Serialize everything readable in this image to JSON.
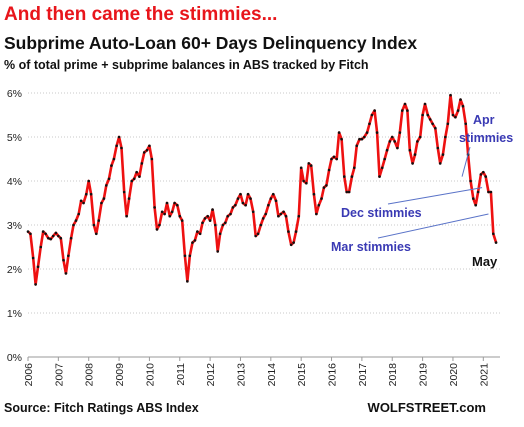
{
  "headline": "And then came the stimmies...",
  "source": "Source: Fitch Ratings ABS Index",
  "brand": "WOLFSTREET.com",
  "chart_data": {
    "type": "line",
    "title": "Subprime Auto-Loan 60+ Days Delinquency Index",
    "subtitle": "% of total prime + subprime balances in ABS tracked by Fitch",
    "xlabel": "",
    "ylabel": "",
    "ylim": [
      0,
      6
    ],
    "xlim": [
      2006.0,
      2021.55
    ],
    "y_ticks": [
      "0%",
      "1%",
      "2%",
      "3%",
      "4%",
      "5%",
      "6%"
    ],
    "x_ticks": [
      "2006",
      "2007",
      "2008",
      "2009",
      "2010",
      "2011",
      "2012",
      "2013",
      "2014",
      "2015",
      "2016",
      "2017",
      "2018",
      "2019",
      "2020",
      "2021"
    ],
    "grid": "horizontal dotted",
    "colors": {
      "line": "#ee1111",
      "markers": "#111111",
      "annotation": "#3a3ab4"
    },
    "annotations": [
      {
        "label": "Apr",
        "label2": "stimmies",
        "target": [
          2020.3,
          4.1
        ]
      },
      {
        "label": "Dec stimmies",
        "target": [
          2020.96,
          3.85
        ]
      },
      {
        "label": "Mar stimmies",
        "target": [
          2021.17,
          3.25
        ]
      },
      {
        "label": "May"
      }
    ],
    "series": [
      {
        "values": [
          [
            2006.0,
            2.85
          ],
          [
            2006.08,
            2.8
          ],
          [
            2006.17,
            2.25
          ],
          [
            2006.25,
            1.65
          ],
          [
            2006.33,
            2.05
          ],
          [
            2006.42,
            2.5
          ],
          [
            2006.5,
            2.85
          ],
          [
            2006.58,
            2.8
          ],
          [
            2006.67,
            2.7
          ],
          [
            2006.75,
            2.68
          ],
          [
            2006.83,
            2.75
          ],
          [
            2006.92,
            2.82
          ],
          [
            2007.0,
            2.75
          ],
          [
            2007.08,
            2.7
          ],
          [
            2007.17,
            2.2
          ],
          [
            2007.25,
            1.9
          ],
          [
            2007.33,
            2.3
          ],
          [
            2007.42,
            2.7
          ],
          [
            2007.5,
            3.0
          ],
          [
            2007.58,
            3.1
          ],
          [
            2007.67,
            3.25
          ],
          [
            2007.75,
            3.55
          ],
          [
            2007.83,
            3.5
          ],
          [
            2007.92,
            3.7
          ],
          [
            2008.0,
            4.0
          ],
          [
            2008.08,
            3.7
          ],
          [
            2008.17,
            3.0
          ],
          [
            2008.25,
            2.8
          ],
          [
            2008.33,
            3.1
          ],
          [
            2008.42,
            3.5
          ],
          [
            2008.5,
            3.6
          ],
          [
            2008.58,
            3.9
          ],
          [
            2008.67,
            4.05
          ],
          [
            2008.75,
            4.35
          ],
          [
            2008.83,
            4.5
          ],
          [
            2008.92,
            4.8
          ],
          [
            2009.0,
            5.0
          ],
          [
            2009.08,
            4.75
          ],
          [
            2009.17,
            3.75
          ],
          [
            2009.25,
            3.2
          ],
          [
            2009.33,
            3.6
          ],
          [
            2009.42,
            4.0
          ],
          [
            2009.5,
            4.05
          ],
          [
            2009.58,
            4.2
          ],
          [
            2009.67,
            4.1
          ],
          [
            2009.75,
            4.4
          ],
          [
            2009.83,
            4.65
          ],
          [
            2009.92,
            4.7
          ],
          [
            2010.0,
            4.8
          ],
          [
            2010.08,
            4.5
          ],
          [
            2010.17,
            3.4
          ],
          [
            2010.25,
            2.9
          ],
          [
            2010.33,
            3.0
          ],
          [
            2010.42,
            3.3
          ],
          [
            2010.5,
            3.25
          ],
          [
            2010.58,
            3.5
          ],
          [
            2010.67,
            3.2
          ],
          [
            2010.75,
            3.3
          ],
          [
            2010.83,
            3.5
          ],
          [
            2010.92,
            3.45
          ],
          [
            2011.0,
            3.2
          ],
          [
            2011.08,
            3.1
          ],
          [
            2011.17,
            2.3
          ],
          [
            2011.25,
            1.72
          ],
          [
            2011.33,
            2.3
          ],
          [
            2011.42,
            2.6
          ],
          [
            2011.5,
            2.65
          ],
          [
            2011.58,
            2.85
          ],
          [
            2011.67,
            2.8
          ],
          [
            2011.75,
            3.05
          ],
          [
            2011.83,
            3.15
          ],
          [
            2011.92,
            3.2
          ],
          [
            2012.0,
            3.1
          ],
          [
            2012.08,
            3.35
          ],
          [
            2012.17,
            3.0
          ],
          [
            2012.25,
            2.4
          ],
          [
            2012.33,
            2.8
          ],
          [
            2012.42,
            3.0
          ],
          [
            2012.5,
            3.05
          ],
          [
            2012.58,
            3.2
          ],
          [
            2012.67,
            3.25
          ],
          [
            2012.75,
            3.4
          ],
          [
            2012.83,
            3.45
          ],
          [
            2012.92,
            3.6
          ],
          [
            2013.0,
            3.7
          ],
          [
            2013.08,
            3.5
          ],
          [
            2013.17,
            3.45
          ],
          [
            2013.25,
            3.7
          ],
          [
            2013.33,
            3.6
          ],
          [
            2013.42,
            3.3
          ],
          [
            2013.5,
            2.75
          ],
          [
            2013.58,
            2.8
          ],
          [
            2013.67,
            3.0
          ],
          [
            2013.75,
            3.15
          ],
          [
            2013.83,
            3.25
          ],
          [
            2013.92,
            3.45
          ],
          [
            2014.0,
            3.6
          ],
          [
            2014.08,
            3.7
          ],
          [
            2014.17,
            3.55
          ],
          [
            2014.25,
            3.2
          ],
          [
            2014.33,
            3.25
          ],
          [
            2014.42,
            3.3
          ],
          [
            2014.5,
            3.2
          ],
          [
            2014.58,
            2.85
          ],
          [
            2014.67,
            2.55
          ],
          [
            2014.75,
            2.6
          ],
          [
            2014.83,
            2.85
          ],
          [
            2014.92,
            3.2
          ],
          [
            2015.0,
            4.3
          ],
          [
            2015.08,
            4.0
          ],
          [
            2015.17,
            3.95
          ],
          [
            2015.25,
            4.4
          ],
          [
            2015.33,
            4.35
          ],
          [
            2015.42,
            3.7
          ],
          [
            2015.5,
            3.25
          ],
          [
            2015.58,
            3.45
          ],
          [
            2015.67,
            3.6
          ],
          [
            2015.75,
            3.85
          ],
          [
            2015.83,
            3.9
          ],
          [
            2015.92,
            4.25
          ],
          [
            2016.0,
            4.5
          ],
          [
            2016.08,
            4.55
          ],
          [
            2016.17,
            4.5
          ],
          [
            2016.25,
            5.1
          ],
          [
            2016.33,
            4.95
          ],
          [
            2016.42,
            4.1
          ],
          [
            2016.5,
            3.75
          ],
          [
            2016.58,
            3.75
          ],
          [
            2016.67,
            4.1
          ],
          [
            2016.75,
            4.3
          ],
          [
            2016.83,
            4.8
          ],
          [
            2016.92,
            4.95
          ],
          [
            2017.0,
            4.95
          ],
          [
            2017.08,
            5.0
          ],
          [
            2017.17,
            5.1
          ],
          [
            2017.25,
            5.3
          ],
          [
            2017.33,
            5.5
          ],
          [
            2017.42,
            5.6
          ],
          [
            2017.5,
            5.1
          ],
          [
            2017.58,
            4.1
          ],
          [
            2017.67,
            4.3
          ],
          [
            2017.75,
            4.5
          ],
          [
            2017.83,
            4.7
          ],
          [
            2017.92,
            4.9
          ],
          [
            2018.0,
            5.0
          ],
          [
            2018.08,
            4.9
          ],
          [
            2018.17,
            4.75
          ],
          [
            2018.25,
            5.1
          ],
          [
            2018.33,
            5.6
          ],
          [
            2018.42,
            5.75
          ],
          [
            2018.5,
            5.6
          ],
          [
            2018.58,
            4.7
          ],
          [
            2018.67,
            4.4
          ],
          [
            2018.75,
            4.6
          ],
          [
            2018.83,
            4.9
          ],
          [
            2018.92,
            5.0
          ],
          [
            2019.0,
            5.5
          ],
          [
            2019.08,
            5.75
          ],
          [
            2019.17,
            5.5
          ],
          [
            2019.25,
            5.4
          ],
          [
            2019.33,
            5.3
          ],
          [
            2019.42,
            5.2
          ],
          [
            2019.5,
            4.75
          ],
          [
            2019.58,
            4.4
          ],
          [
            2019.67,
            4.6
          ],
          [
            2019.75,
            5.0
          ],
          [
            2019.83,
            5.3
          ],
          [
            2019.92,
            5.95
          ],
          [
            2020.0,
            5.5
          ],
          [
            2020.08,
            5.45
          ],
          [
            2020.17,
            5.6
          ],
          [
            2020.25,
            5.85
          ],
          [
            2020.33,
            5.7
          ],
          [
            2020.42,
            5.3
          ],
          [
            2020.5,
            4.6
          ],
          [
            2020.58,
            4.0
          ],
          [
            2020.67,
            3.6
          ],
          [
            2020.75,
            3.45
          ],
          [
            2020.83,
            3.75
          ],
          [
            2020.92,
            4.15
          ],
          [
            2021.0,
            4.2
          ],
          [
            2021.08,
            4.1
          ],
          [
            2021.17,
            3.75
          ],
          [
            2021.25,
            3.75
          ],
          [
            2021.33,
            2.8
          ],
          [
            2021.42,
            2.6
          ]
        ]
      }
    ]
  }
}
